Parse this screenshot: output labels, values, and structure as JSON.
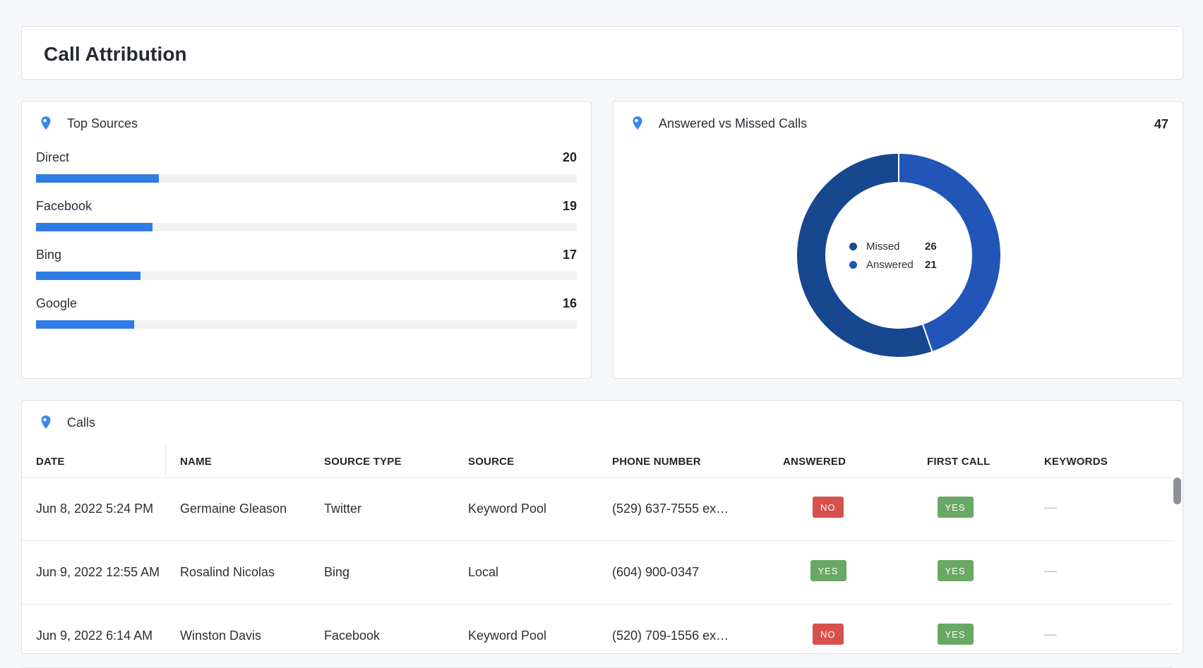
{
  "page": {
    "title": "Call Attribution"
  },
  "top_sources": {
    "title": "Top Sources",
    "icon": "map-pin-icon",
    "max_scale": 88,
    "items": [
      {
        "label": "Direct",
        "value": 20
      },
      {
        "label": "Facebook",
        "value": 19
      },
      {
        "label": "Bing",
        "value": 17
      },
      {
        "label": "Google",
        "value": 16
      }
    ]
  },
  "answered_missed": {
    "title": "Answered vs Missed Calls",
    "icon": "map-pin-icon",
    "total": "47",
    "legend": [
      {
        "label": "Missed",
        "value": "26",
        "color": "#17478f"
      },
      {
        "label": "Answered",
        "value": "21",
        "color": "#2155b8"
      }
    ]
  },
  "calls": {
    "title": "Calls",
    "icon": "map-pin-icon",
    "columns": [
      "DATE",
      "NAME",
      "SOURCE TYPE",
      "SOURCE",
      "PHONE NUMBER",
      "ANSWERED",
      "FIRST CALL",
      "KEYWORDS"
    ],
    "rows": [
      {
        "date": "Jun 8, 2022 5:24 PM",
        "name": "Germaine Gleason",
        "source_type": "Twitter",
        "source": "Keyword Pool",
        "phone": "(529) 637-7555 ex…",
        "answered": "NO",
        "first_call": "YES",
        "keywords": "—"
      },
      {
        "date": "Jun 9, 2022 12:55 AM",
        "name": "Rosalind Nicolas",
        "source_type": "Bing",
        "source": "Local",
        "phone": "(604) 900-0347",
        "answered": "YES",
        "first_call": "YES",
        "keywords": "—"
      },
      {
        "date": "Jun 9, 2022 6:14 AM",
        "name": "Winston Davis",
        "source_type": "Facebook",
        "source": "Keyword Pool",
        "phone": "(520) 709-1556 ex…",
        "answered": "NO",
        "first_call": "YES",
        "keywords": "—"
      }
    ]
  },
  "colors": {
    "bar": "#2f7be5",
    "badge_yes": "#6aa865",
    "badge_no": "#d6514d",
    "pin": "#3a86e8"
  }
}
